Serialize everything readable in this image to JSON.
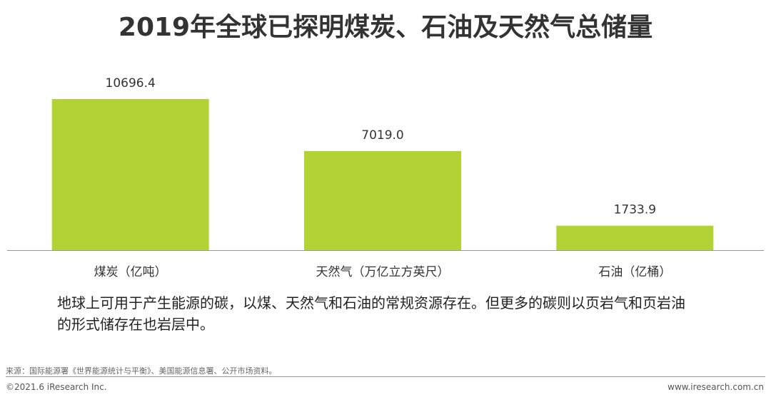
{
  "chart_data": {
    "type": "bar",
    "title": "2019年全球已探明煤炭、石油及天然气总储量",
    "categories": [
      "煤炭（亿吨）",
      "天然气（万亿立方英尺）",
      "石油（亿桶）"
    ],
    "values": [
      10696.4,
      7019.0,
      1733.9
    ],
    "value_labels": [
      "10696.4",
      "7019.0",
      "1733.9"
    ],
    "color": "#b2d235"
  },
  "note": "地球上可用于产生能源的碳，以煤、天然气和石油的常规资源存在。但更多的碳则以页岩气和页岩油的形式储存在也岩层中。",
  "source": "来源：国际能源署《世界能源统计与平衡》、美国能源信息署、公开市场资料。",
  "copyright": "©2021.6 iResearch Inc.",
  "website": "www.iresearch.com.cn"
}
